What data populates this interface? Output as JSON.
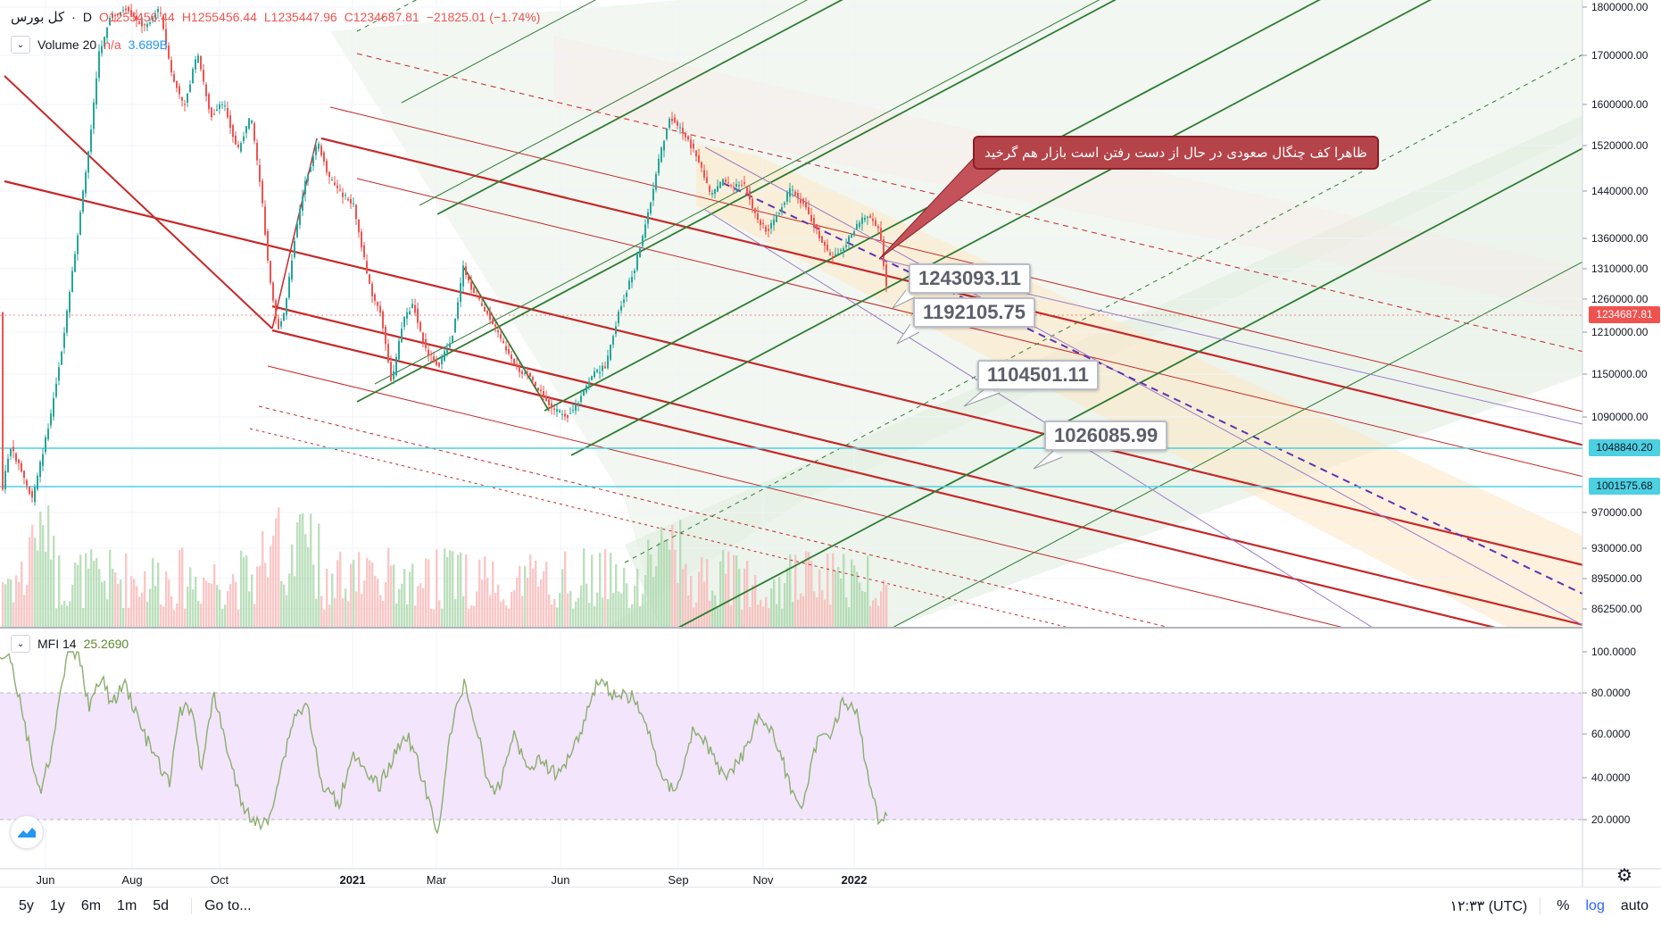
{
  "symbol": {
    "title": "کل بورس",
    "interval": "D",
    "open": "O1255456.44",
    "high": "H1255456.44",
    "low": "L1235447.96",
    "close": "C1234687.81",
    "change": "−21825.01 (−1.74%)",
    "separator": "·"
  },
  "volume": {
    "label": "Volume 20",
    "na": "n/a",
    "value": "3.689B"
  },
  "mfi": {
    "label": "MFI 14",
    "value": "25.2690"
  },
  "price_axis": {
    "ticks": [
      "1800000.00",
      "1700000.00",
      "1600000.00",
      "1520000.00",
      "1440000.00",
      "1360000.00",
      "1310000.00",
      "1260000.00",
      "1210000.00",
      "1150000.00",
      "1090000.00",
      "970000.00",
      "930000.00",
      "895000.00",
      "862500.00"
    ],
    "last_price": "1234687.81",
    "hline1": "1048840.20",
    "hline2": "1001575.68"
  },
  "mfi_axis": {
    "ticks": [
      "100.0000",
      "80.0000",
      "60.0000",
      "40.0000",
      "20.0000"
    ]
  },
  "time_axis": {
    "ticks": [
      "Jun",
      "Aug",
      "Oct",
      "2021",
      "Mar",
      "Jun",
      "Sep",
      "Nov",
      "2022"
    ]
  },
  "annotations": {
    "note": "ظاهرا کف چنگال صعودی در حال از دست رفتن است بازار هم گرخید",
    "levels": [
      "1243093.11",
      "1192105.75",
      "1104501.11",
      "1026085.99"
    ]
  },
  "bottom_bar": {
    "ranges": [
      "5y",
      "1y",
      "6m",
      "1m",
      "5d"
    ],
    "goto": "Go to...",
    "time": "۱۲:۳۳ (UTC)",
    "percent": "%",
    "log": "log",
    "auto": "auto"
  },
  "colors": {
    "up": "#26a69a",
    "down": "#ef5350",
    "pitchfork_red": "#c62828",
    "pitchfork_green": "#2e7d32",
    "hline": "#4dd0e1",
    "mfi_band": "#f3e5fc",
    "mfi_line": "#8bae6e"
  }
}
